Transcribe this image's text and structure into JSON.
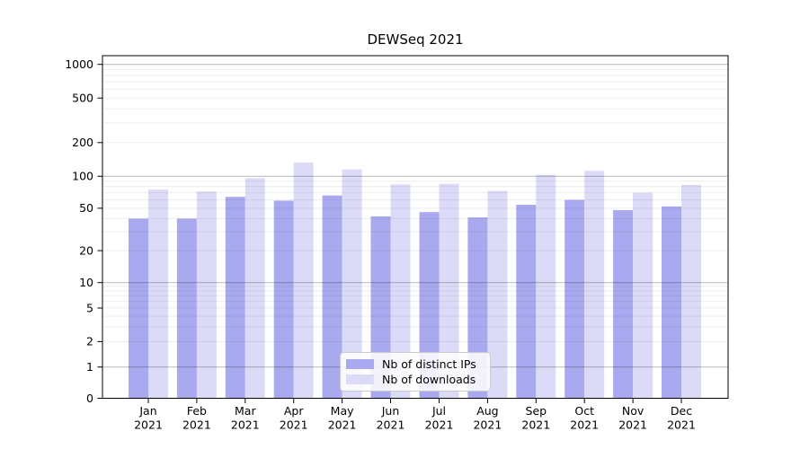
{
  "title": "DEWSeq 2021",
  "chart_data": {
    "type": "bar",
    "title": "DEWSeq 2021",
    "xlabel": "",
    "ylabel": "",
    "yscale": "symlog",
    "ylim": [
      0,
      1200
    ],
    "grid": true,
    "grid_position": "above-bars",
    "legend_position": "lower center",
    "y_ticks": [
      0,
      1,
      2,
      5,
      10,
      20,
      50,
      100,
      200,
      500,
      1000
    ],
    "y_major_gridlines": [
      1,
      10,
      100,
      1000
    ],
    "x_ticks": [
      {
        "month": "Jan",
        "year": "2021"
      },
      {
        "month": "Feb",
        "year": "2021"
      },
      {
        "month": "Mar",
        "year": "2021"
      },
      {
        "month": "Apr",
        "year": "2021"
      },
      {
        "month": "May",
        "year": "2021"
      },
      {
        "month": "Jun",
        "year": "2021"
      },
      {
        "month": "Jul",
        "year": "2021"
      },
      {
        "month": "Aug",
        "year": "2021"
      },
      {
        "month": "Sep",
        "year": "2021"
      },
      {
        "month": "Oct",
        "year": "2021"
      },
      {
        "month": "Nov",
        "year": "2021"
      },
      {
        "month": "Dec",
        "year": "2021"
      }
    ],
    "series": [
      {
        "name": "Nb of distinct IPs",
        "color": "#a9a9f0",
        "values": [
          40,
          40,
          64,
          59,
          66,
          42,
          46,
          41,
          54,
          60,
          48,
          52
        ]
      },
      {
        "name": "Nb of downloads",
        "color": "#dbdbf8",
        "values": [
          75,
          72,
          96,
          133,
          115,
          84,
          85,
          73,
          103,
          112,
          70,
          83
        ]
      }
    ],
    "style": {
      "axis_color": "#000000",
      "tick_label_color": "#000000",
      "grid_major_color": "rgba(0,0,0,0.28)",
      "grid_minor_color": "rgba(0,0,0,0.07)"
    }
  }
}
